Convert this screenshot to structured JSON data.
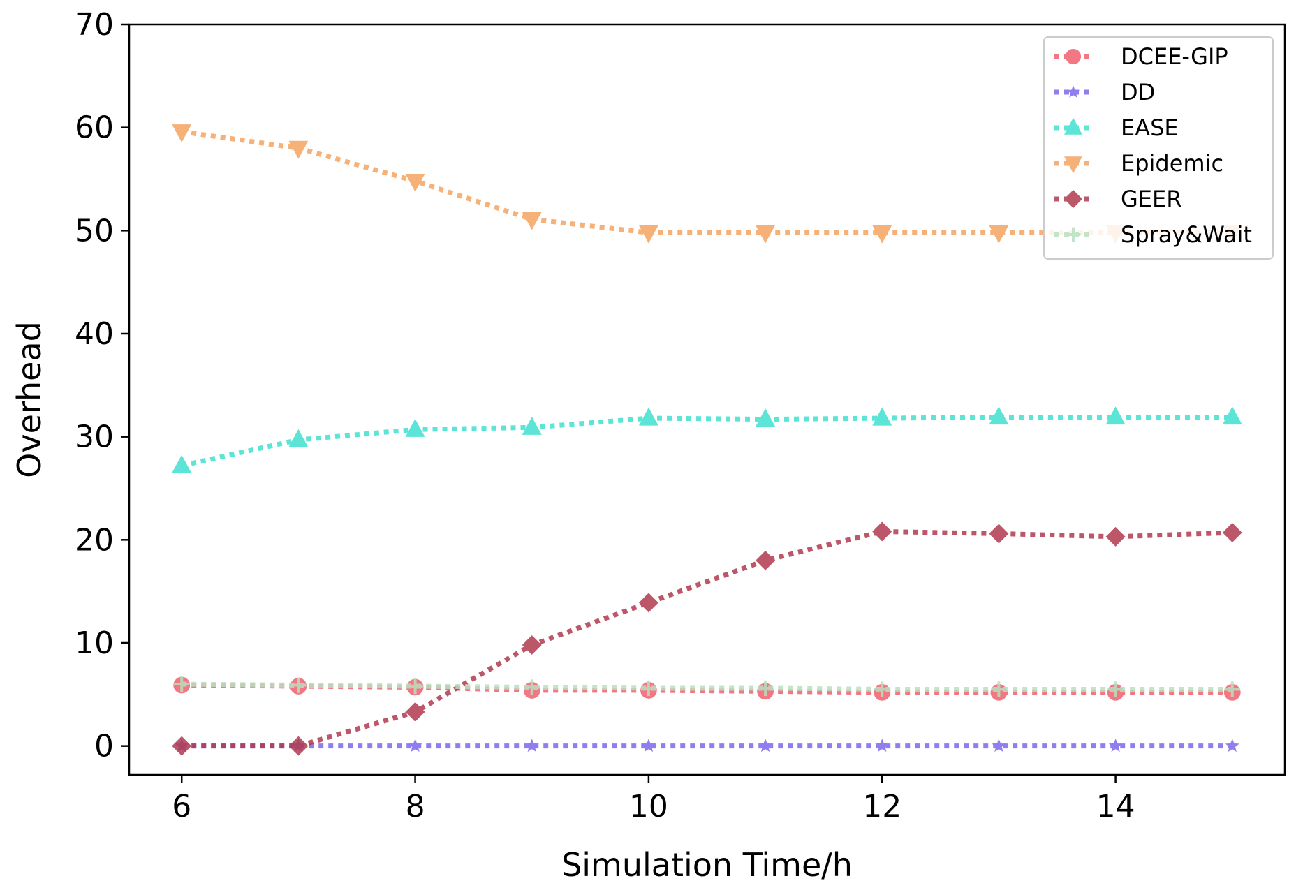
{
  "chart_data": {
    "type": "line",
    "title": "",
    "xlabel": "Simulation Time/h",
    "ylabel": "Overhead",
    "xlim": [
      5.55,
      15.45
    ],
    "ylim": [
      -2.8,
      70
    ],
    "xticks": [
      6,
      8,
      10,
      12,
      14
    ],
    "yticks": [
      0,
      10,
      20,
      30,
      40,
      50,
      60,
      70
    ],
    "x": [
      6,
      7,
      8,
      9,
      10,
      11,
      12,
      13,
      14,
      15
    ],
    "grid": false,
    "legend_position": "top-right",
    "series": [
      {
        "name": "DCEE-GIP",
        "color": "#f0606e",
        "marker": "circle",
        "values": [
          5.9,
          5.8,
          5.7,
          5.4,
          5.4,
          5.3,
          5.2,
          5.2,
          5.2,
          5.2
        ]
      },
      {
        "name": "DD",
        "color": "#7b68ee",
        "marker": "star",
        "values": [
          0,
          0,
          0,
          0,
          0,
          0,
          0,
          0,
          0,
          0
        ]
      },
      {
        "name": "EASE",
        "color": "#40e0d0",
        "marker": "triangle-up",
        "values": [
          27.2,
          29.7,
          30.7,
          30.9,
          31.8,
          31.7,
          31.8,
          31.9,
          31.9,
          31.9
        ]
      },
      {
        "name": "Epidemic",
        "color": "#f4a460",
        "marker": "triangle-down",
        "values": [
          59.6,
          58.0,
          54.8,
          51.1,
          49.8,
          49.8,
          49.8,
          49.8,
          49.8,
          49.8
        ]
      },
      {
        "name": "GEER",
        "color": "#b03a50",
        "marker": "diamond",
        "values": [
          0,
          0,
          3.3,
          9.8,
          13.9,
          18.0,
          20.8,
          20.6,
          20.3,
          20.7
        ]
      },
      {
        "name": "Spray&Wait",
        "color": "#b8e0c0",
        "marker": "plus",
        "values": [
          6.0,
          5.9,
          5.8,
          5.7,
          5.6,
          5.6,
          5.5,
          5.5,
          5.5,
          5.5
        ]
      }
    ]
  }
}
